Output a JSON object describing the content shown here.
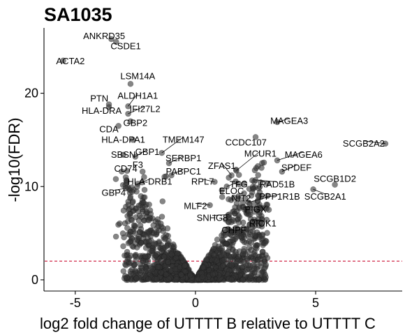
{
  "chart_data": {
    "type": "scatter",
    "title": "SA1035",
    "xlabel": "log2 fold change of UTTTT B relative to UTTTT C",
    "ylabel": "-log10(FDR)",
    "xlim": [
      -6.3,
      8.6
    ],
    "ylim": [
      -1.2,
      27.0
    ],
    "x_ticks": [
      -5,
      0,
      5
    ],
    "y_ticks": [
      0,
      10,
      20
    ],
    "grid": false,
    "threshold_y": 2.0,
    "threshold_color": "#cc1133",
    "point_color": "#333333",
    "labeled_points": [
      {
        "label": "ANKRD35",
        "x": -3.5,
        "y": 25.8,
        "lx": -3.8,
        "ly": 26.1
      },
      {
        "label": "CSDE1",
        "x": -3.3,
        "y": 25.5,
        "lx": -2.9,
        "ly": 25.0
      },
      {
        "label": "ACTA2",
        "x": -5.5,
        "y": 23.5,
        "lx": -5.2,
        "ly": 23.4
      },
      {
        "label": "LSM14A",
        "x": -2.7,
        "y": 21.0,
        "lx": -2.4,
        "ly": 21.8
      },
      {
        "label": "ALDH1A1",
        "x": -2.8,
        "y": 18.6,
        "lx": -2.4,
        "ly": 19.7
      },
      {
        "label": "PTN",
        "x": -3.6,
        "y": 18.8,
        "lx": -4.0,
        "ly": 19.4
      },
      {
        "label": "HLA-DRA",
        "x": -3.6,
        "y": 18.5,
        "lx": -3.9,
        "ly": 18.1
      },
      {
        "label": "IFI27L2",
        "x": -2.8,
        "y": 17.8,
        "lx": -2.1,
        "ly": 18.3
      },
      {
        "label": "GBP2",
        "x": -2.7,
        "y": 17.0,
        "lx": -2.5,
        "ly": 16.8
      },
      {
        "label": "CDA",
        "x": -3.2,
        "y": 16.5,
        "lx": -3.6,
        "ly": 16.1
      },
      {
        "label": "HLA-DPA1",
        "x": -2.6,
        "y": 15.0,
        "lx": -3.0,
        "ly": 15.0
      },
      {
        "label": "TMEM147",
        "x": -1.4,
        "y": 13.6,
        "lx": -0.5,
        "ly": 15.0
      },
      {
        "label": "SBSN",
        "x": -3.0,
        "y": 13.4,
        "lx": -3.0,
        "ly": 13.4
      },
      {
        "label": "GBP1",
        "x": -2.5,
        "y": 13.2,
        "lx": -2.0,
        "ly": 13.7
      },
      {
        "label": "SERBP1",
        "x": -1.1,
        "y": 12.5,
        "lx": -0.5,
        "ly": 13.0
      },
      {
        "label": "MCUR1",
        "x": 1.7,
        "y": 11.7,
        "lx": 2.7,
        "ly": 13.5
      },
      {
        "label": "MAGEA6",
        "x": 3.4,
        "y": 12.8,
        "lx": 4.5,
        "ly": 13.4
      },
      {
        "label": "F3",
        "x": -2.2,
        "y": 11.6,
        "lx": -2.4,
        "ly": 12.3
      },
      {
        "label": "CD74",
        "x": -2.9,
        "y": 11.0,
        "lx": -2.9,
        "ly": 11.9
      },
      {
        "label": "ZFAS1",
        "x": 1.5,
        "y": 11.2,
        "lx": 1.1,
        "ly": 12.2
      },
      {
        "label": "SPDEF",
        "x": 3.6,
        "y": 11.6,
        "lx": 4.2,
        "ly": 12.0
      },
      {
        "label": "PABPC1",
        "x": -1.0,
        "y": 11.2,
        "lx": -0.5,
        "ly": 11.6
      },
      {
        "label": "SCGB1D2",
        "x": 5.8,
        "y": 10.2,
        "lx": 5.8,
        "ly": 10.8
      },
      {
        "label": "HLA-DRB1",
        "x": -2.4,
        "y": 10.3,
        "lx": -1.9,
        "ly": 10.5
      },
      {
        "label": "RPL7",
        "x": 0.8,
        "y": 10.5,
        "lx": 0.3,
        "ly": 10.5
      },
      {
        "label": "TFG",
        "x": 1.3,
        "y": 10.0,
        "lx": 1.8,
        "ly": 10.2
      },
      {
        "label": "RAD51B",
        "x": 2.5,
        "y": 10.7,
        "lx": 3.4,
        "ly": 10.2
      },
      {
        "label": "GBP4",
        "x": -2.9,
        "y": 9.8,
        "lx": -3.4,
        "ly": 9.3
      },
      {
        "label": "ELOC",
        "x": 1.1,
        "y": 9.6,
        "lx": 1.5,
        "ly": 9.5
      },
      {
        "label": "SCGB2A1",
        "x": 4.9,
        "y": 9.7,
        "lx": 5.4,
        "ly": 8.9
      },
      {
        "label": "NIT2",
        "x": 1.6,
        "y": 8.8,
        "lx": 1.9,
        "ly": 8.7
      },
      {
        "label": "PPP1R1B",
        "x": 2.2,
        "y": 8.3,
        "lx": 3.5,
        "ly": 8.9
      },
      {
        "label": "MLF2",
        "x": 0.6,
        "y": 8.0,
        "lx": 0.0,
        "ly": 7.9
      },
      {
        "label": "PIGX",
        "x": 2.0,
        "y": 7.8,
        "lx": 2.5,
        "ly": 7.5
      },
      {
        "label": "SNHG8",
        "x": 1.4,
        "y": 7.0,
        "lx": 0.7,
        "ly": 6.6
      },
      {
        "label": "RIOK1",
        "x": 2.3,
        "y": 6.5,
        "lx": 2.8,
        "ly": 6.0
      },
      {
        "label": "CHPF",
        "x": 1.6,
        "y": 6.3,
        "lx": 1.6,
        "ly": 5.3
      },
      {
        "label": "MAGEA3",
        "x": 3.4,
        "y": 16.9,
        "lx": 3.9,
        "ly": 17.0
      },
      {
        "label": "CCDC107",
        "x": 2.5,
        "y": 15.3,
        "lx": 2.1,
        "ly": 14.7
      },
      {
        "label": "SCGB2A2",
        "x": 7.9,
        "y": 14.6,
        "lx": 7.0,
        "ly": 14.6
      }
    ]
  }
}
